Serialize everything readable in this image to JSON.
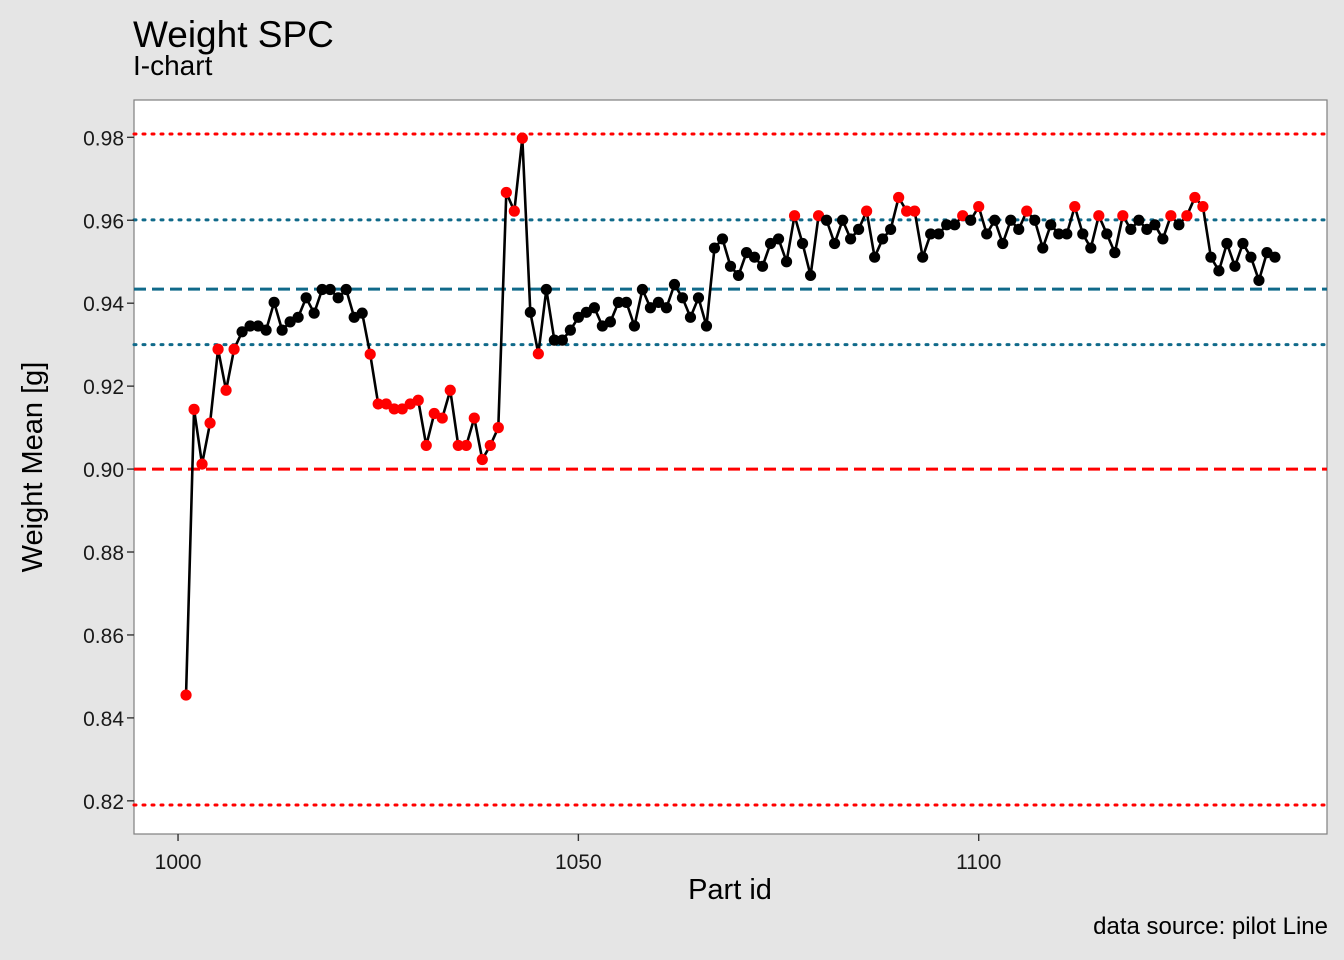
{
  "chart_data": {
    "type": "line",
    "title": "Weight SPC",
    "subtitle": "I-chart",
    "caption": "data source: pilot Line",
    "xlabel": "Part id",
    "ylabel": "Weight Mean [g]",
    "xlim": [
      994.5,
      1143.5
    ],
    "ylim": [
      0.812,
      0.989
    ],
    "x_ticks": [
      1000,
      1050,
      1100
    ],
    "y_ticks": [
      0.82,
      0.84,
      0.86,
      0.88,
      0.9,
      0.92,
      0.94,
      0.96,
      0.98
    ],
    "y_tick_labels": [
      "0.82",
      "0.84",
      "0.86",
      "0.88",
      "0.90",
      "0.92",
      "0.94",
      "0.96",
      "0.98"
    ],
    "grid": false,
    "reference_lines": [
      {
        "value": 0.9808,
        "style": "dotted",
        "color": "#ff0000"
      },
      {
        "value": 0.9601,
        "style": "dotted",
        "color": "#106a8a"
      },
      {
        "value": 0.9434,
        "style": "dashed",
        "color": "#106a8a"
      },
      {
        "value": 0.93,
        "style": "dotted",
        "color": "#106a8a"
      },
      {
        "value": 0.9,
        "style": "dashed",
        "color": "#ff0000"
      },
      {
        "value": 0.819,
        "style": "dotted",
        "color": "#ff0000"
      }
    ],
    "colors": {
      "series_line": "#000000",
      "in_control_point": "#000000",
      "out_of_rule_point": "#ff0000"
    },
    "series": [
      {
        "x_start": 1001,
        "values": [
          0.8455,
          0.9144,
          0.9012,
          0.9111,
          0.9289,
          0.919,
          0.9289,
          0.9331,
          0.9345,
          0.9345,
          0.9335,
          0.9402,
          0.9335,
          0.9355,
          0.9366,
          0.9413,
          0.9376,
          0.9433,
          0.9433,
          0.9413,
          0.9433,
          0.9366,
          0.9376,
          0.9277,
          0.9157,
          0.9157,
          0.9145,
          0.9145,
          0.9157,
          0.9166,
          0.9057,
          0.9134,
          0.9123,
          0.919,
          0.9057,
          0.9057,
          0.9123,
          0.9023,
          0.9057,
          0.91,
          0.9667,
          0.9622,
          0.9798,
          0.9378,
          0.9278,
          0.9433,
          0.9311,
          0.9311,
          0.9335,
          0.9366,
          0.9378,
          0.9389,
          0.9345,
          0.9355,
          0.9402,
          0.9402,
          0.9345,
          0.9433,
          0.9389,
          0.9402,
          0.9389,
          0.9445,
          0.9413,
          0.9366,
          0.9413,
          0.9345,
          0.9533,
          0.9555,
          0.9489,
          0.9467,
          0.9522,
          0.9511,
          0.9489,
          0.9544,
          0.9555,
          0.95,
          0.9611,
          0.9544,
          0.9467,
          0.9611,
          0.96,
          0.9544,
          0.96,
          0.9555,
          0.9578,
          0.9622,
          0.9511,
          0.9555,
          0.9578,
          0.9655,
          0.9622,
          0.9622,
          0.9511,
          0.9567,
          0.9567,
          0.9589,
          0.9589,
          0.9611,
          0.96,
          0.9633,
          0.9567,
          0.96,
          0.9544,
          0.96,
          0.9578,
          0.9622,
          0.96,
          0.9533,
          0.9589,
          0.9567,
          0.9567,
          0.9633,
          0.9567,
          0.9533,
          0.9611,
          0.9567,
          0.9522,
          0.9611,
          0.9578,
          0.96,
          0.9578,
          0.9589,
          0.9555,
          0.9611,
          0.9589,
          0.9611,
          0.9655,
          0.9633,
          0.9511,
          0.9478,
          0.9544,
          0.9489,
          0.9544,
          0.9511,
          0.9455,
          0.9522,
          0.9511
        ],
        "flagged": [
          1,
          1,
          1,
          1,
          1,
          1,
          1,
          0,
          0,
          0,
          0,
          0,
          0,
          0,
          0,
          0,
          0,
          0,
          0,
          0,
          0,
          0,
          0,
          1,
          1,
          1,
          1,
          1,
          1,
          1,
          1,
          1,
          1,
          1,
          1,
          1,
          1,
          1,
          1,
          1,
          1,
          1,
          1,
          0,
          1,
          0,
          0,
          0,
          0,
          0,
          0,
          0,
          0,
          0,
          0,
          0,
          0,
          0,
          0,
          0,
          0,
          0,
          0,
          0,
          0,
          0,
          0,
          0,
          0,
          0,
          0,
          0,
          0,
          0,
          0,
          0,
          1,
          0,
          0,
          1,
          0,
          0,
          0,
          0,
          0,
          1,
          0,
          0,
          0,
          1,
          1,
          1,
          0,
          0,
          0,
          0,
          0,
          1,
          0,
          1,
          0,
          0,
          0,
          0,
          0,
          1,
          0,
          0,
          0,
          0,
          0,
          1,
          0,
          0,
          1,
          0,
          0,
          1,
          0,
          0,
          0,
          0,
          0,
          1,
          0,
          1,
          1,
          1,
          0,
          0,
          0,
          0,
          0,
          0,
          0,
          0,
          0
        ]
      }
    ]
  }
}
